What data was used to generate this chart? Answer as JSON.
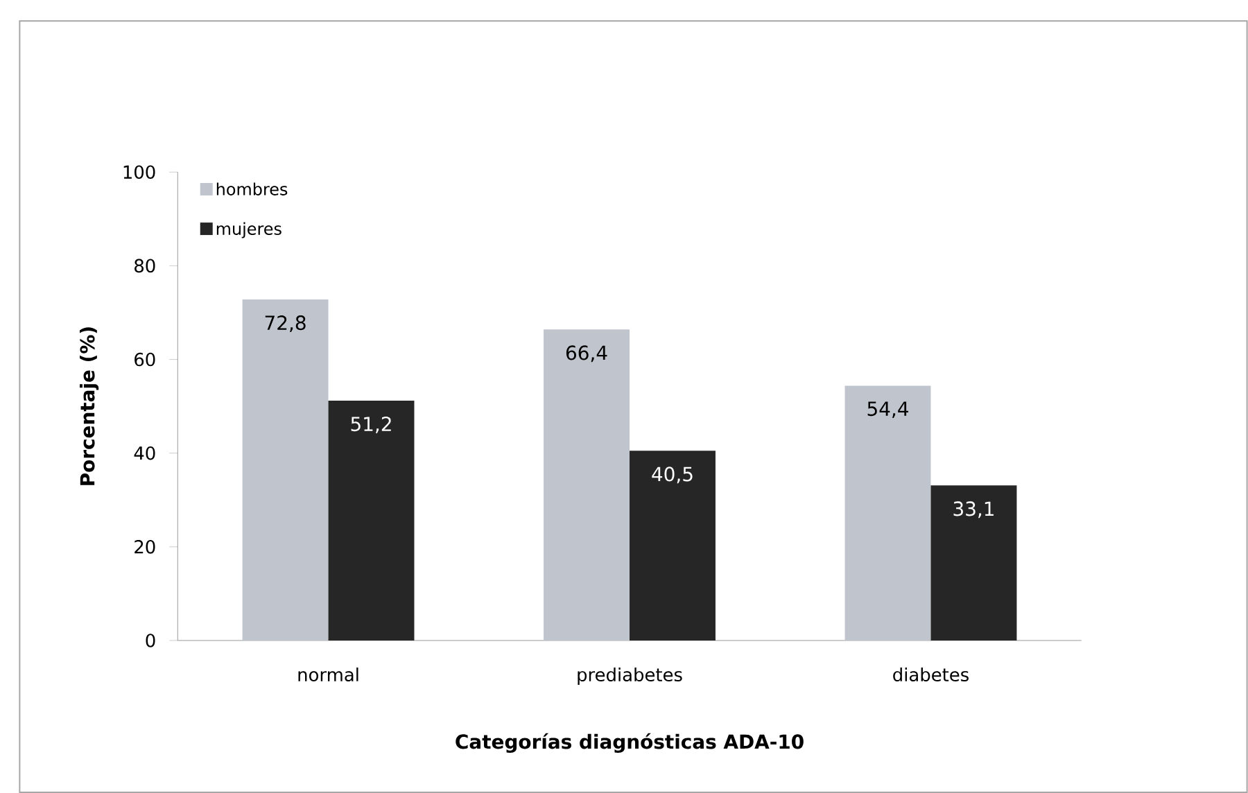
{
  "chart_data": {
    "type": "bar",
    "xlabel": "Categorías diagnósticas ADA-10",
    "ylabel": "Porcentaje (%)",
    "categories": [
      "normal",
      "prediabetes",
      "diabetes"
    ],
    "series": [
      {
        "name": "hombres",
        "color": "#c0c5cd",
        "values": [
          72.8,
          66.4,
          54.4
        ],
        "value_labels": [
          "72,8",
          "66,4",
          "54,4"
        ]
      },
      {
        "name": "mujeres",
        "color": "#262626",
        "values": [
          51.2,
          40.5,
          33.1
        ],
        "value_labels": [
          "51,2",
          "40,5",
          "33,1"
        ]
      }
    ],
    "ylim": [
      0,
      100
    ],
    "yticks": [
      0,
      20,
      40,
      60,
      80,
      100
    ],
    "legend": "top left",
    "grid": false
  }
}
